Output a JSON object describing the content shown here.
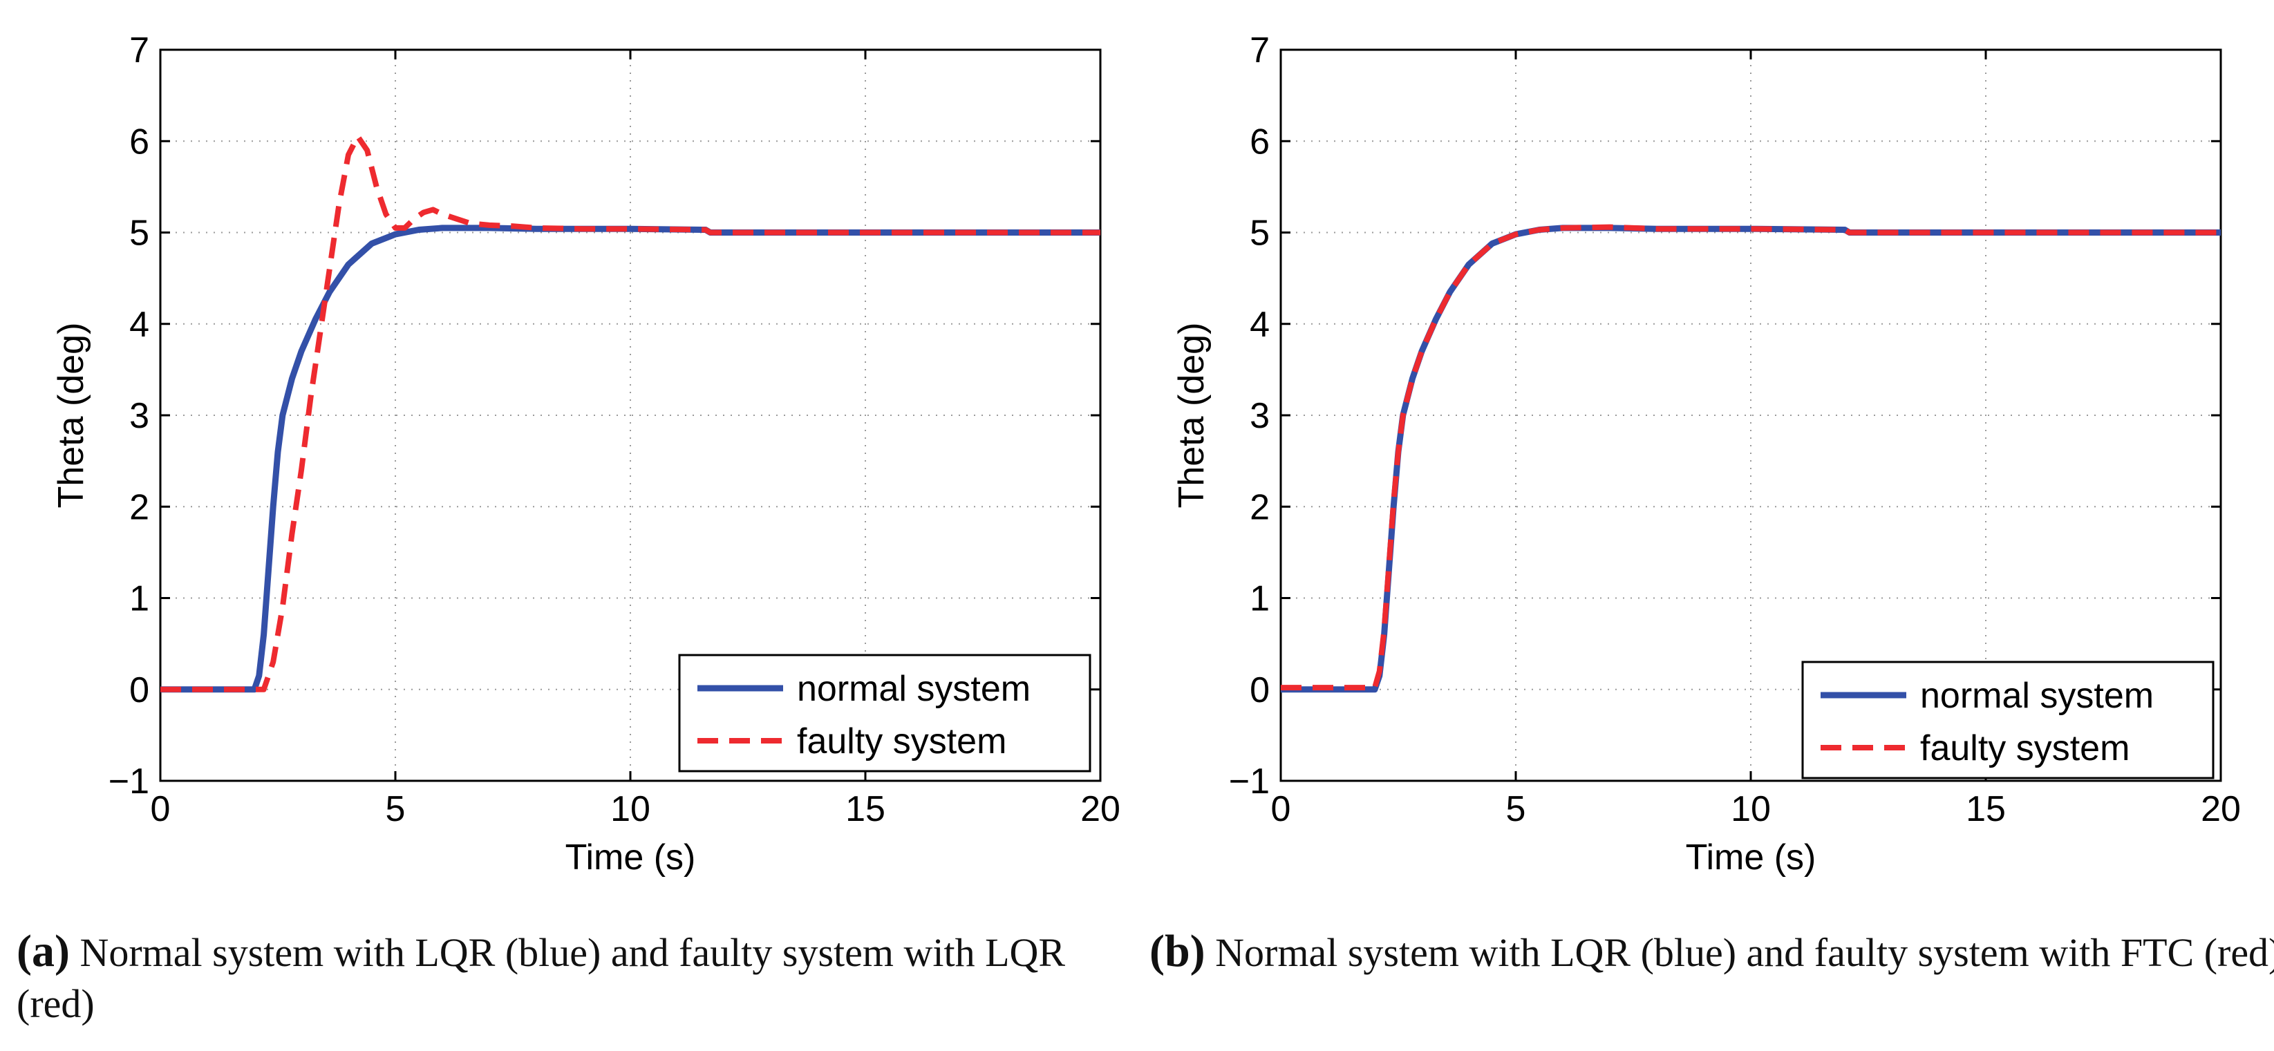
{
  "colors": {
    "normal": "#3350a8",
    "faulty": "#ee2a2f",
    "grid": "#9a9a9a"
  },
  "chart_data": [
    {
      "type": "line",
      "xlabel": "Time (s)",
      "ylabel": "Theta (deg)",
      "xlim": [
        0,
        20
      ],
      "ylim": [
        -1,
        7
      ],
      "xticks": [
        0,
        5,
        10,
        15,
        20
      ],
      "yticks": [
        -1,
        0,
        1,
        2,
        3,
        4,
        5,
        6,
        7
      ],
      "grid": true,
      "legend_position": "bottom-right",
      "series": [
        {
          "name": "normal system",
          "style": "solid",
          "x": [
            0,
            2.0,
            2.1,
            2.2,
            2.3,
            2.4,
            2.5,
            2.6,
            2.8,
            3.0,
            3.3,
            3.6,
            4.0,
            4.5,
            5.0,
            5.5,
            6.0,
            7.0,
            8.0,
            10.0,
            11.6,
            11.7,
            20.0
          ],
          "y": [
            0,
            0,
            0.15,
            0.6,
            1.3,
            2.0,
            2.6,
            3.0,
            3.4,
            3.7,
            4.05,
            4.35,
            4.65,
            4.88,
            4.98,
            5.03,
            5.05,
            5.05,
            5.04,
            5.04,
            5.03,
            5.0,
            5.0
          ]
        },
        {
          "name": "faulty system",
          "style": "dashed",
          "x": [
            0,
            2.2,
            2.4,
            2.6,
            2.8,
            3.0,
            3.2,
            3.4,
            3.6,
            3.8,
            4.0,
            4.2,
            4.4,
            4.6,
            4.8,
            5.0,
            5.2,
            5.4,
            5.6,
            5.8,
            6.0,
            6.3,
            6.6,
            7.0,
            7.5,
            8.0,
            9.0,
            10.0,
            11.6,
            11.7,
            20.0
          ],
          "y": [
            0,
            0,
            0.3,
            0.9,
            1.7,
            2.4,
            3.2,
            3.9,
            4.6,
            5.3,
            5.85,
            6.05,
            5.9,
            5.5,
            5.2,
            5.05,
            5.05,
            5.15,
            5.22,
            5.25,
            5.2,
            5.15,
            5.1,
            5.08,
            5.07,
            5.05,
            5.04,
            5.04,
            5.03,
            5.0,
            5.0
          ]
        }
      ]
    },
    {
      "type": "line",
      "xlabel": "Time (s)",
      "ylabel": "Theta (deg)",
      "xlim": [
        0,
        20
      ],
      "ylim": [
        -1,
        7
      ],
      "xticks": [
        0,
        5,
        10,
        15,
        20
      ],
      "yticks": [
        -1,
        0,
        1,
        2,
        3,
        4,
        5,
        6,
        7
      ],
      "grid": true,
      "legend_position": "bottom-right",
      "series": [
        {
          "name": "normal system",
          "style": "solid",
          "x": [
            0,
            2.0,
            2.1,
            2.2,
            2.3,
            2.4,
            2.5,
            2.6,
            2.8,
            3.0,
            3.3,
            3.6,
            4.0,
            4.5,
            5.0,
            5.5,
            6.0,
            7.0,
            8.0,
            10.0,
            12.0,
            12.1,
            20.0
          ],
          "y": [
            0,
            0,
            0.15,
            0.6,
            1.3,
            2.0,
            2.6,
            3.0,
            3.4,
            3.7,
            4.05,
            4.35,
            4.65,
            4.88,
            4.98,
            5.03,
            5.05,
            5.05,
            5.04,
            5.04,
            5.03,
            5.0,
            5.0
          ]
        },
        {
          "name": "faulty system",
          "style": "dashed",
          "x": [
            0,
            2.0,
            2.1,
            2.2,
            2.3,
            2.4,
            2.5,
            2.6,
            2.8,
            3.0,
            3.3,
            3.6,
            4.0,
            4.5,
            5.0,
            5.5,
            6.0,
            7.0,
            8.0,
            10.0,
            12.0,
            12.1,
            20.0
          ],
          "y": [
            0.02,
            0.02,
            0.2,
            0.65,
            1.35,
            2.05,
            2.6,
            3.0,
            3.4,
            3.7,
            4.05,
            4.35,
            4.65,
            4.88,
            4.98,
            5.03,
            5.05,
            5.06,
            5.04,
            5.04,
            5.03,
            5.0,
            5.0
          ]
        }
      ]
    }
  ],
  "captions": [
    {
      "label": "(a)",
      "text": "Normal system with LQR (blue) and faulty system with LQR (red)"
    },
    {
      "label": "(b)",
      "text": "Normal system with LQR (blue) and faulty system with FTC (red)"
    }
  ]
}
